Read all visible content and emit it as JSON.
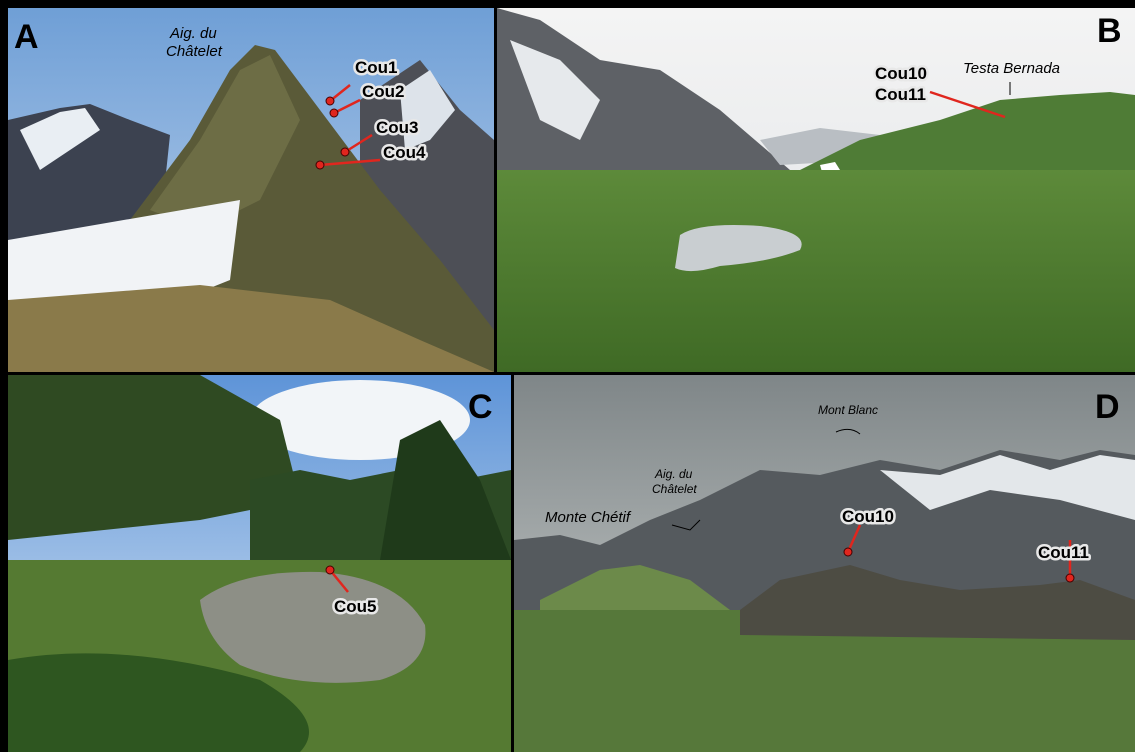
{
  "panels": [
    {
      "letter": "A",
      "labels": [
        {
          "lines": [
            "Aig. du",
            "Châtelet"
          ]
        },
        {
          "lines": [
            "Cou1"
          ]
        },
        {
          "lines": [
            "Cou2"
          ]
        },
        {
          "lines": [
            "Cou3"
          ]
        },
        {
          "lines": [
            "Cou4"
          ]
        }
      ]
    },
    {
      "letter": "B",
      "labels": [
        {
          "lines": [
            "Cou10",
            "Cou11"
          ]
        },
        {
          "lines": [
            "Testa Bernada"
          ]
        }
      ]
    },
    {
      "letter": "C",
      "labels": [
        {
          "lines": [
            "Cou5"
          ]
        }
      ]
    },
    {
      "letter": "D",
      "labels": [
        {
          "lines": [
            "Mont Blanc"
          ]
        },
        {
          "lines": [
            "Aig. du",
            "Châtelet"
          ]
        },
        {
          "lines": [
            "Monte Chétif"
          ]
        },
        {
          "lines": [
            "Cou10"
          ]
        },
        {
          "lines": [
            "Cou11"
          ]
        }
      ]
    }
  ]
}
